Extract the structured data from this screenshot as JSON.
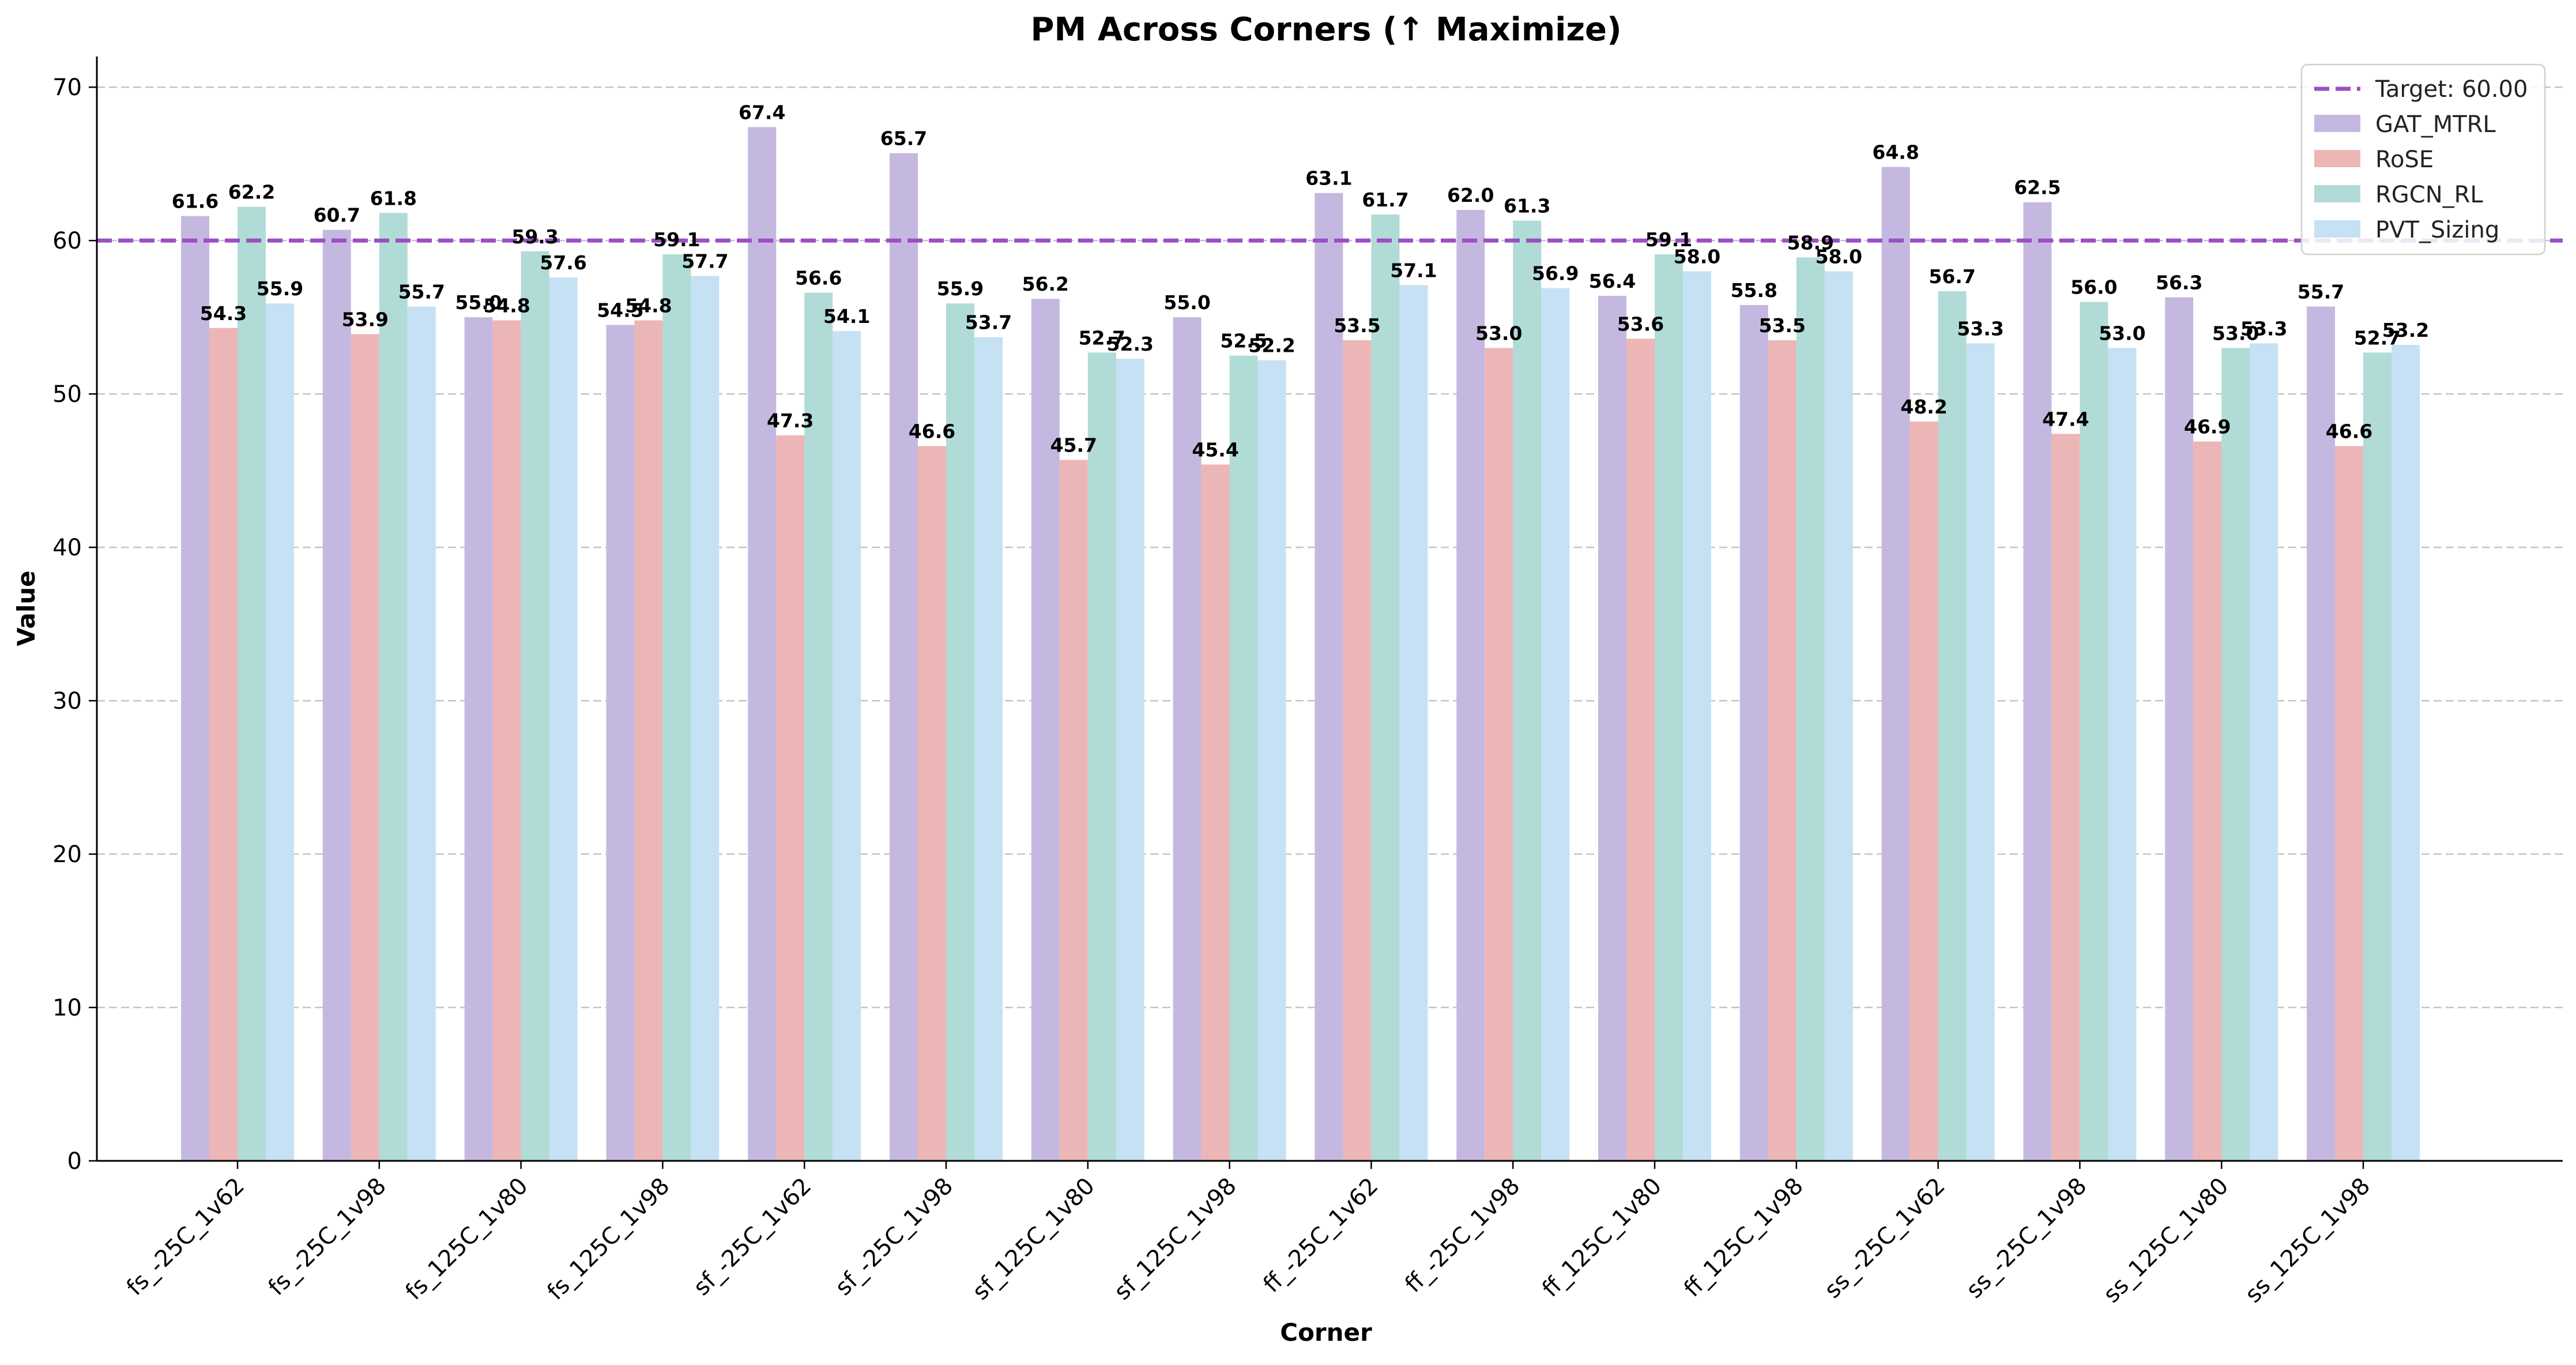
{
  "chart_data": {
    "type": "bar",
    "title": "PM Across Corners (↑ Maximize)",
    "xlabel": "Corner",
    "ylabel": "Value",
    "ylim": [
      0,
      72
    ],
    "yticks": [
      0,
      10,
      20,
      30,
      40,
      50,
      60,
      70
    ],
    "grid": "y-dashed",
    "legend_position": "top-right",
    "categories": [
      "fs_-25C_1v62",
      "fs_-25C_1v98",
      "fs_125C_1v80",
      "fs_125C_1v98",
      "sf_-25C_1v62",
      "sf_-25C_1v98",
      "sf_125C_1v80",
      "sf_125C_1v98",
      "ff_-25C_1v62",
      "ff_-25C_1v98",
      "ff_125C_1v80",
      "ff_125C_1v98",
      "ss_-25C_1v62",
      "ss_-25C_1v98",
      "ss_125C_1v80",
      "ss_125C_1v98"
    ],
    "series": [
      {
        "name": "GAT_MTRL",
        "color": "#c5b8e0",
        "values": [
          61.6,
          60.7,
          55.0,
          54.5,
          67.4,
          65.7,
          56.2,
          55.0,
          63.1,
          62.0,
          56.4,
          55.8,
          64.8,
          62.5,
          56.3,
          55.7
        ]
      },
      {
        "name": "RoSE",
        "color": "#ecb6b6",
        "values": [
          54.3,
          53.9,
          54.8,
          54.8,
          47.3,
          46.6,
          45.7,
          45.4,
          53.5,
          53.0,
          53.6,
          53.5,
          48.2,
          47.4,
          46.9,
          46.6
        ]
      },
      {
        "name": "RGCN_RL",
        "color": "#b1dbd6",
        "values": [
          62.2,
          61.8,
          59.3,
          59.1,
          56.6,
          55.9,
          52.7,
          52.5,
          61.7,
          61.3,
          59.1,
          58.9,
          56.7,
          56.0,
          53.0,
          52.7
        ]
      },
      {
        "name": "PVT_Sizing",
        "color": "#c6e1f3",
        "values": [
          55.9,
          55.7,
          57.6,
          57.7,
          54.1,
          53.7,
          52.3,
          52.2,
          57.1,
          56.9,
          58.0,
          58.0,
          53.3,
          53.0,
          53.3,
          53.2
        ]
      }
    ],
    "reference_line": {
      "label": "Target: 60.00",
      "value": 60,
      "color": "#9b4fc2",
      "style": "dashed"
    }
  }
}
